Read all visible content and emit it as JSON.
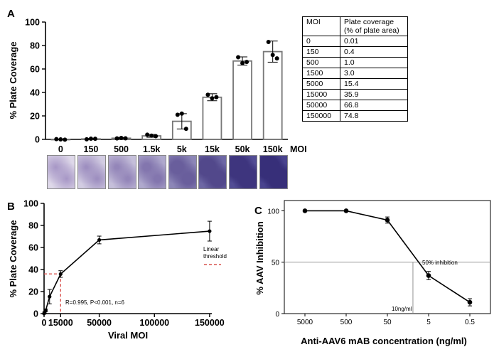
{
  "panels": {
    "a": "A",
    "b": "B",
    "c": "C"
  },
  "chart_data": [
    {
      "type": "bar",
      "id": "A",
      "ylabel": "% Plate Coverage",
      "xunit": "MOI",
      "categories": [
        "0",
        "150",
        "500",
        "1.5k",
        "5k",
        "15k",
        "50k",
        "150k"
      ],
      "values": [
        0.01,
        0.4,
        1.0,
        3.0,
        15.4,
        35.9,
        66.8,
        74.8
      ],
      "errors": [
        0.3,
        0.4,
        0.6,
        1.2,
        6.5,
        3.0,
        3.5,
        9.0
      ],
      "points": [
        [
          0.2,
          0.0,
          -0.2
        ],
        [
          0.1,
          0.6,
          0.5
        ],
        [
          0.8,
          1.2,
          0.9
        ],
        [
          4.0,
          3.2,
          2.7
        ],
        [
          21,
          22,
          9
        ],
        [
          38,
          35,
          36
        ],
        [
          70,
          65,
          66
        ],
        [
          83,
          72,
          69
        ]
      ],
      "ylim": [
        0,
        100
      ],
      "yticks": [
        "0",
        "20",
        "40",
        "60",
        "80",
        "100"
      ],
      "well_intensity": [
        0.02,
        0.1,
        0.18,
        0.32,
        0.55,
        0.75,
        0.92,
        0.98
      ]
    },
    {
      "type": "line",
      "id": "B",
      "ylabel": "% Plate Coverage",
      "xlabel": "Viral MOI",
      "x": [
        0,
        150,
        500,
        1500,
        5000,
        15000,
        50000,
        150000
      ],
      "y": [
        0.01,
        0.4,
        1.0,
        3.0,
        15.4,
        35.9,
        66.8,
        74.8
      ],
      "errors": [
        0.3,
        0.4,
        0.6,
        1.2,
        6.5,
        3.0,
        3.5,
        9.0
      ],
      "xlim": [
        0,
        152000
      ],
      "ylim": [
        0,
        100
      ],
      "xtick_values": [
        0,
        15000,
        50000,
        100000,
        150000
      ],
      "xticks": [
        "0",
        "15000",
        "50000",
        "100000",
        "150000"
      ],
      "ytick_values": [
        0,
        20,
        40,
        60,
        80,
        100
      ],
      "yticks": [
        "0",
        "20",
        "40",
        "60",
        "80",
        "100"
      ],
      "threshold": {
        "x": 15000,
        "y": 36
      },
      "legend_line1": "Linear",
      "legend_line2": "threshold",
      "annotation": "R=0.995, P<0.001, n=6"
    },
    {
      "type": "line",
      "id": "C",
      "ylabel": "% AAV Inhibition",
      "xlabel": "Anti-AAV6 mAB concentration (ng/ml)",
      "categories": [
        "5000",
        "500",
        "50",
        "5",
        "0.5"
      ],
      "y": [
        100,
        100,
        91,
        37,
        11
      ],
      "errors": [
        0,
        0,
        3,
        4,
        3.5
      ],
      "ylim": [
        0,
        110
      ],
      "ytick_values": [
        0,
        50,
        100
      ],
      "yticks": [
        "0",
        "50",
        "100"
      ],
      "inhibition_label": "50% inhibition",
      "ic50_label": "10ng/ml",
      "ic50_position": 2.62
    }
  ],
  "table": {
    "headers": [
      "MOI",
      "Plate coverage\n(% of plate area)"
    ],
    "rows": [
      [
        "0",
        "0.01"
      ],
      [
        "150",
        "0.4"
      ],
      [
        "500",
        "1.0"
      ],
      [
        "1500",
        "3.0"
      ],
      [
        "5000",
        "15.4"
      ],
      [
        "15000",
        "35.9"
      ],
      [
        "50000",
        "66.8"
      ],
      [
        "150000",
        "74.8"
      ]
    ]
  }
}
